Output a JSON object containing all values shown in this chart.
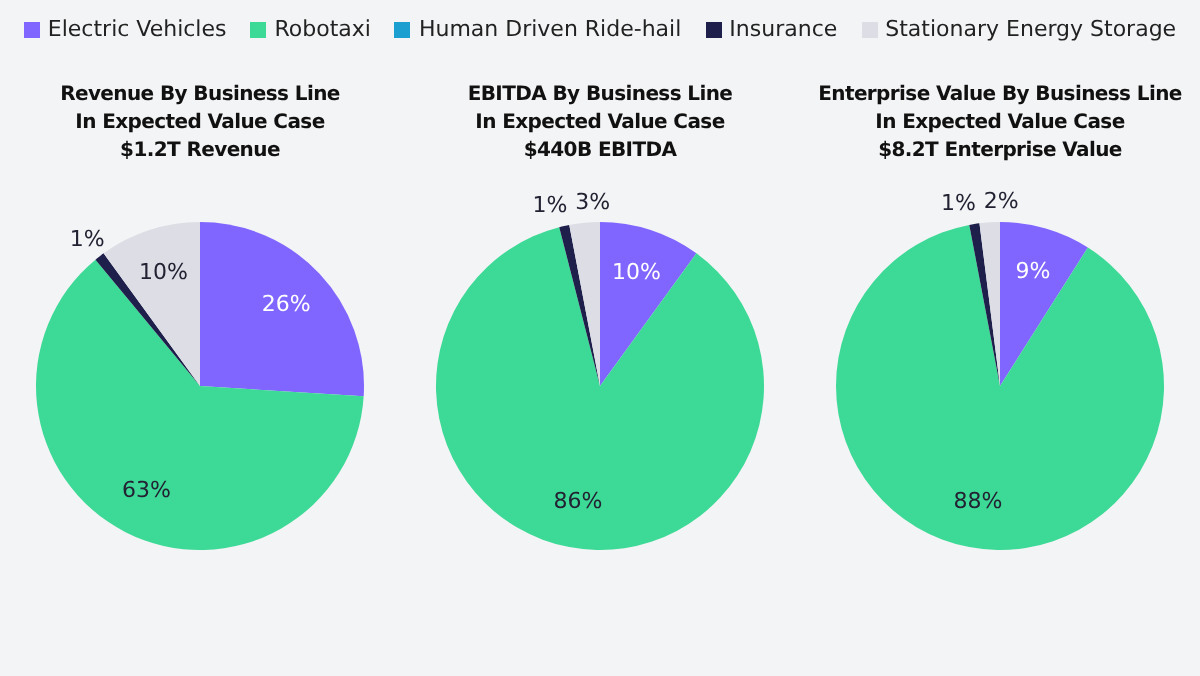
{
  "chart_data": [
    {
      "type": "pie",
      "title": "Revenue By Business Line\nIn Expected Value Case",
      "subtitle": "$1.2T Revenue",
      "legend": "top",
      "categories": [
        "Electric Vehicles",
        "Robotaxi",
        "Human Driven Ride-hail",
        "Insurance",
        "Stationary Energy Storage"
      ],
      "values": [
        26,
        63,
        0,
        1,
        10
      ],
      "colors": [
        "#8066ff",
        "#3dd996",
        "#1a9fd0",
        "#1e1f4b",
        "#dcdde5"
      ],
      "value_labels": [
        "26%",
        "63%",
        null,
        "1%",
        "10%"
      ]
    },
    {
      "type": "pie",
      "title": "EBITDA By Business Line\nIn Expected Value Case",
      "subtitle": "$440B EBITDA",
      "categories": [
        null,
        null,
        null,
        null,
        null
      ],
      "values": [
        10,
        86,
        0,
        1,
        3
      ],
      "colors": [
        "#8066ff",
        "#3dd996",
        "#1a9fd0",
        "#1e1f4b",
        "#dcdde5"
      ],
      "value_labels": [
        "10%",
        "86%",
        null,
        "1%",
        "3%"
      ]
    },
    {
      "type": "pie",
      "title": "Enterprise Value By Business Line\nIn Expected Value Case",
      "subtitle": "$8.2T Enterprise Value",
      "categories": [
        null,
        null,
        null,
        null,
        null
      ],
      "values": [
        9,
        88,
        0,
        1,
        2
      ],
      "colors": [
        "#8066ff",
        "#3dd996",
        "#1a9fd0",
        "#1e1f4b",
        "#dcdde5"
      ],
      "value_labels": [
        "9%",
        "88%",
        null,
        "1%",
        "2%"
      ]
    }
  ]
}
